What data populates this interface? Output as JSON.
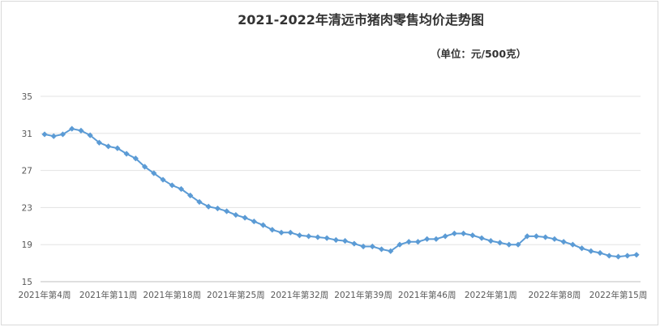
{
  "chart_data": {
    "type": "line",
    "title": "2021-2022年清远市猪肉零售均价走势图",
    "subtitle": "（单位：元/500克）",
    "xlabel": "",
    "ylabel": "",
    "ylim": [
      15,
      35
    ],
    "yticks": [
      15,
      19,
      23,
      27,
      31,
      35
    ],
    "grid": true,
    "legend": "none",
    "series_color": "#5b9bd5",
    "x_tick_labels": [
      "2021年第4周",
      "2021年第11周",
      "2021年第18周",
      "2021年第25周",
      "2021年第32周",
      "2021年第39周",
      "2021年第46周",
      "2022年第1周",
      "2022年第8周",
      "2022年第15周"
    ],
    "series": [
      {
        "values": [
          30.9,
          30.7,
          30.9,
          31.5,
          31.3,
          30.8,
          30.0,
          29.6,
          29.4,
          28.8,
          28.3,
          27.4,
          26.7,
          26.0,
          25.4,
          25.0,
          24.3,
          23.6,
          23.1,
          22.9,
          22.6,
          22.2,
          21.9,
          21.5,
          21.1,
          20.6,
          20.3,
          20.3,
          20.0,
          19.9,
          19.8,
          19.7,
          19.5,
          19.4,
          19.1,
          18.8,
          18.8,
          18.5,
          18.3,
          19.0,
          19.3,
          19.3,
          19.6,
          19.6,
          19.9,
          20.2,
          20.2,
          20.0,
          19.7,
          19.4,
          19.2,
          19.0,
          19.0,
          19.9,
          19.9,
          19.8,
          19.6,
          19.3,
          19.0,
          18.6,
          18.3,
          18.1,
          17.8,
          17.7,
          17.8,
          17.9
        ]
      }
    ]
  }
}
